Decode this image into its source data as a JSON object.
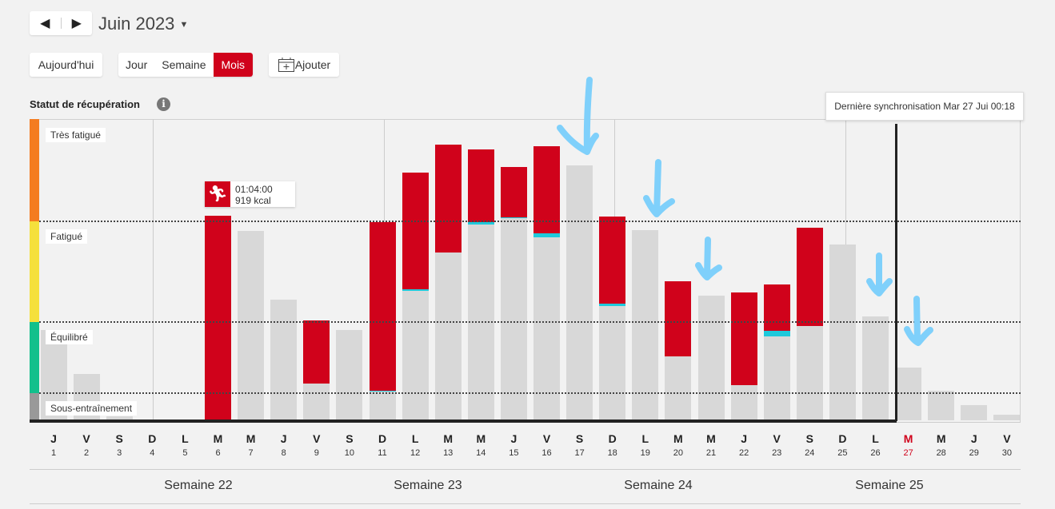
{
  "header": {
    "month": "Juin 2023",
    "prev": "◀",
    "next": "▶"
  },
  "toolbar": {
    "today": "Aujourd'hui",
    "views": [
      "Jour",
      "Semaine",
      "Mois"
    ],
    "active_view": "Mois",
    "add": "Ajouter"
  },
  "section": {
    "title": "Statut de récupération",
    "info": "i"
  },
  "zones": [
    {
      "label": "Très fatigué",
      "color": "#f47c20"
    },
    {
      "label": "Fatigué",
      "color": "#f5e03c"
    },
    {
      "label": "Équilibré",
      "color": "#12c08c"
    },
    {
      "label": "Sous-entraînement",
      "color": "#999999"
    }
  ],
  "activity_tooltip": {
    "duration": "01:04:00",
    "energy": "919 kcal"
  },
  "sync_tooltip": "Dernière synchronisation Mar 27 Jui 00:18",
  "weeks": [
    "Semaine 22",
    "Semaine 23",
    "Semaine 24",
    "Semaine 25"
  ],
  "chart_data": {
    "type": "bar",
    "title": "Statut de récupération",
    "ylim": [
      0,
      100
    ],
    "thresholds": [
      9,
      32.6,
      66
    ],
    "days": [
      {
        "l": "J",
        "n": "1",
        "gray": 30,
        "red": 0,
        "cyan": 0
      },
      {
        "l": "V",
        "n": "2",
        "gray": 15.4,
        "red": 0,
        "cyan": 0
      },
      {
        "l": "S",
        "n": "3",
        "gray": 1.3,
        "red": 0,
        "cyan": 0
      },
      {
        "l": "D",
        "n": "4",
        "gray": 0,
        "red": 0,
        "cyan": 0
      },
      {
        "l": "L",
        "n": "5",
        "gray": 0,
        "red": 0,
        "cyan": 0
      },
      {
        "l": "M",
        "n": "6",
        "gray": 0,
        "red": 68,
        "cyan": 0
      },
      {
        "l": "M",
        "n": "7",
        "gray": 62.9,
        "red": 0,
        "cyan": 0
      },
      {
        "l": "J",
        "n": "8",
        "gray": 40,
        "red": 0,
        "cyan": 0
      },
      {
        "l": "V",
        "n": "9",
        "gray": 12.2,
        "red": 21,
        "cyan": 0
      },
      {
        "l": "S",
        "n": "10",
        "gray": 30,
        "red": 0,
        "cyan": 0
      },
      {
        "l": "D",
        "n": "11",
        "gray": 9.5,
        "red": 56,
        "cyan": 0.4
      },
      {
        "l": "L",
        "n": "12",
        "gray": 43,
        "red": 38.5,
        "cyan": 0.6
      },
      {
        "l": "M",
        "n": "13",
        "gray": 55.7,
        "red": 35.8,
        "cyan": 0
      },
      {
        "l": "M",
        "n": "14",
        "gray": 65,
        "red": 24,
        "cyan": 0.8
      },
      {
        "l": "J",
        "n": "15",
        "gray": 67,
        "red": 16.5,
        "cyan": 0.5
      },
      {
        "l": "V",
        "n": "16",
        "gray": 60.7,
        "red": 29,
        "cyan": 1.4
      },
      {
        "l": "S",
        "n": "17",
        "gray": 84.6,
        "red": 0,
        "cyan": 0
      },
      {
        "l": "D",
        "n": "18",
        "gray": 38,
        "red": 28.8,
        "cyan": 0.8
      },
      {
        "l": "L",
        "n": "19",
        "gray": 63,
        "red": 0,
        "cyan": 0
      },
      {
        "l": "M",
        "n": "20",
        "gray": 21.2,
        "red": 24.9,
        "cyan": 0
      },
      {
        "l": "M",
        "n": "21",
        "gray": 41.4,
        "red": 0,
        "cyan": 0
      },
      {
        "l": "J",
        "n": "22",
        "gray": 11.7,
        "red": 30.7,
        "cyan": 0
      },
      {
        "l": "V",
        "n": "23",
        "gray": 27.9,
        "red": 15.3,
        "cyan": 1.9
      },
      {
        "l": "S",
        "n": "24",
        "gray": 31.3,
        "red": 32.6,
        "cyan": 0
      },
      {
        "l": "D",
        "n": "25",
        "gray": 58.4,
        "red": 0,
        "cyan": 0
      },
      {
        "l": "L",
        "n": "26",
        "gray": 34.5,
        "red": 0,
        "cyan": 0
      },
      {
        "l": "M",
        "n": "27",
        "gray": 17.5,
        "red": 0,
        "cyan": 0,
        "today": true
      },
      {
        "l": "M",
        "n": "28",
        "gray": 9.8,
        "red": 0,
        "cyan": 0
      },
      {
        "l": "J",
        "n": "29",
        "gray": 5,
        "red": 0,
        "cyan": 0
      },
      {
        "l": "V",
        "n": "30",
        "gray": 1.9,
        "red": 0,
        "cyan": 0
      }
    ]
  }
}
